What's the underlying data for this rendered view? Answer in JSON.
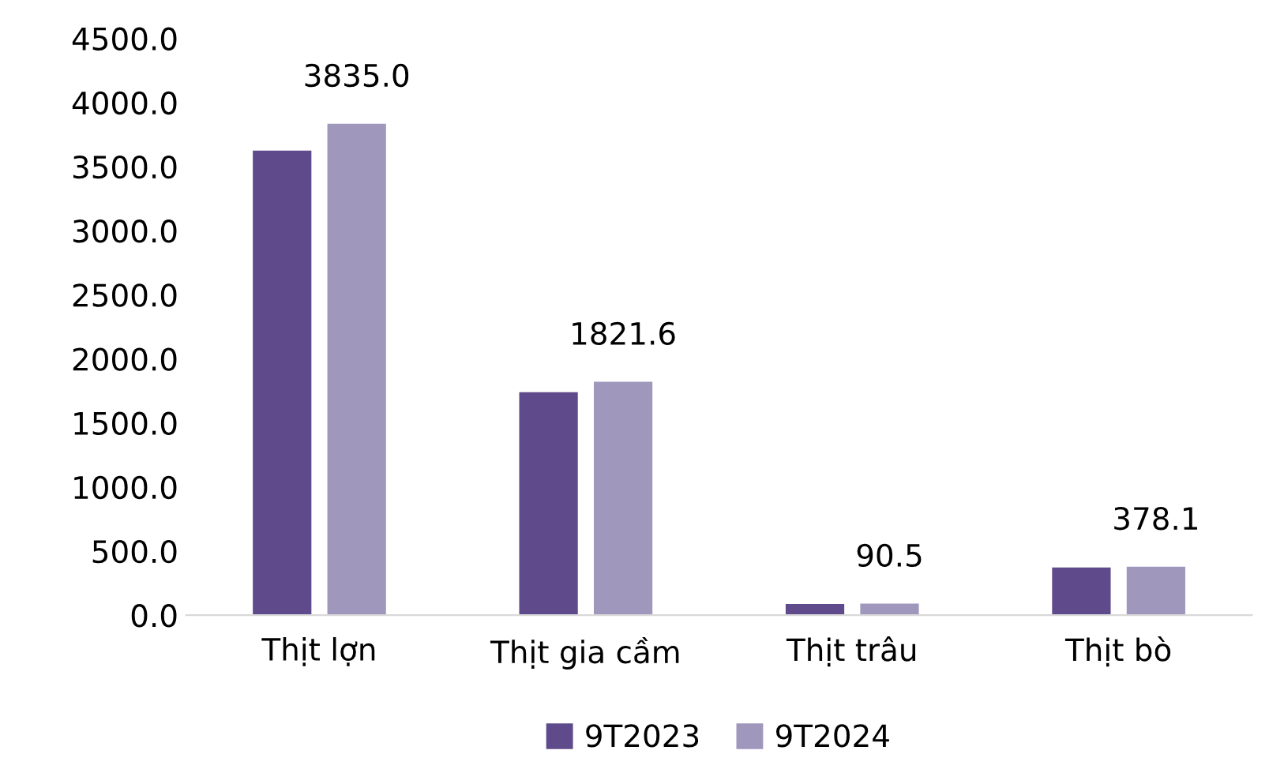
{
  "chart_data": {
    "type": "bar",
    "categories": [
      "Thịt lợn",
      "Thịt gia cầm",
      "Thịt trâu",
      "Thịt bò"
    ],
    "series": [
      {
        "name": "9T2023",
        "color": "#5f4b8b",
        "values": [
          3625,
          1740,
          88,
          372
        ]
      },
      {
        "name": "9T2024",
        "color": "#a097bd",
        "values": [
          3835.0,
          1821.6,
          90.5,
          378.1
        ],
        "value_labels": [
          "3835.0",
          "1821.6",
          "90.5",
          "378.1"
        ]
      }
    ],
    "ylim": [
      0,
      4500
    ],
    "yticks": [
      {
        "value": 0,
        "label": "0.0"
      },
      {
        "value": 500,
        "label": "500.0"
      },
      {
        "value": 1000,
        "label": "1000.0"
      },
      {
        "value": 1500,
        "label": "1500.0"
      },
      {
        "value": 2000,
        "label": "2000.0"
      },
      {
        "value": 2500,
        "label": "2500.0"
      },
      {
        "value": 3000,
        "label": "3000.0"
      },
      {
        "value": 3500,
        "label": "3500.0"
      },
      {
        "value": 4000,
        "label": "4000.0"
      },
      {
        "value": 4500,
        "label": "4500.0"
      }
    ],
    "grid": false,
    "legend": "bottom"
  }
}
